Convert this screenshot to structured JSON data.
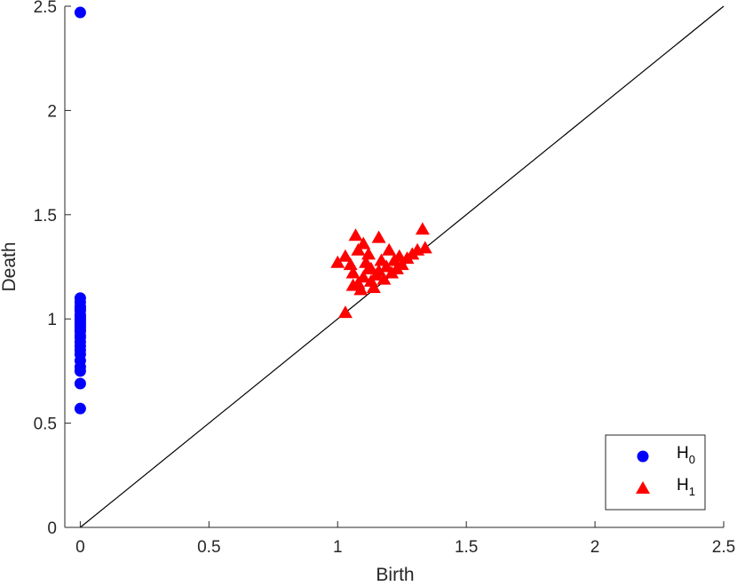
{
  "chart_data": {
    "type": "scatter",
    "xlabel": "Birth",
    "ylabel": "Death",
    "xlim": [
      -0.06,
      2.5
    ],
    "ylim": [
      0,
      2.5
    ],
    "xticks": [
      "0",
      "0.5",
      "1",
      "1.5",
      "2",
      "2.5"
    ],
    "yticks": [
      "0",
      "0.5",
      "1",
      "1.5",
      "2",
      "2.5"
    ],
    "grid": false,
    "legend_position": "bottom-right",
    "diagonal_line": true,
    "colors": {
      "H0": "#0000ff",
      "H1": "#ff0000",
      "axes": "#262626",
      "diagonal": "#000000"
    },
    "series": [
      {
        "legend_main": "H",
        "legend_sub": "0",
        "marker": "circle",
        "points": [
          [
            0,
            2.47
          ],
          [
            0,
            1.1
          ],
          [
            0,
            1.08
          ],
          [
            0,
            1.06
          ],
          [
            0,
            1.05
          ],
          [
            0,
            1.04
          ],
          [
            0,
            1.02
          ],
          [
            0,
            1.01
          ],
          [
            0,
            1.0
          ],
          [
            0,
            0.99
          ],
          [
            0,
            0.98
          ],
          [
            0,
            0.97
          ],
          [
            0,
            0.96
          ],
          [
            0,
            0.95
          ],
          [
            0,
            0.94
          ],
          [
            0,
            0.92
          ],
          [
            0,
            0.91
          ],
          [
            0,
            0.89
          ],
          [
            0,
            0.87
          ],
          [
            0,
            0.85
          ],
          [
            0,
            0.83
          ],
          [
            0,
            0.8
          ],
          [
            0,
            0.77
          ],
          [
            0,
            0.75
          ],
          [
            0,
            0.69
          ],
          [
            0,
            0.57
          ]
        ]
      },
      {
        "legend_main": "H",
        "legend_sub": "1",
        "marker": "triangle",
        "points": [
          [
            1.03,
            1.03
          ],
          [
            1.0,
            1.27
          ],
          [
            1.03,
            1.3
          ],
          [
            1.05,
            1.26
          ],
          [
            1.06,
            1.22
          ],
          [
            1.07,
            1.4
          ],
          [
            1.08,
            1.33
          ],
          [
            1.1,
            1.36
          ],
          [
            1.08,
            1.17
          ],
          [
            1.09,
            1.14
          ],
          [
            1.1,
            1.2
          ],
          [
            1.11,
            1.27
          ],
          [
            1.12,
            1.24
          ],
          [
            1.12,
            1.31
          ],
          [
            1.13,
            1.18
          ],
          [
            1.14,
            1.15
          ],
          [
            1.15,
            1.21
          ],
          [
            1.16,
            1.39
          ],
          [
            1.17,
            1.28
          ],
          [
            1.18,
            1.19
          ],
          [
            1.19,
            1.25
          ],
          [
            1.2,
            1.33
          ],
          [
            1.21,
            1.22
          ],
          [
            1.22,
            1.28
          ],
          [
            1.23,
            1.24
          ],
          [
            1.24,
            1.3
          ],
          [
            1.25,
            1.26
          ],
          [
            1.27,
            1.29
          ],
          [
            1.29,
            1.31
          ],
          [
            1.31,
            1.33
          ],
          [
            1.33,
            1.43
          ],
          [
            1.34,
            1.34
          ],
          [
            1.06,
            1.16
          ],
          [
            1.13,
            1.24
          ],
          [
            1.16,
            1.23
          ]
        ]
      }
    ]
  }
}
